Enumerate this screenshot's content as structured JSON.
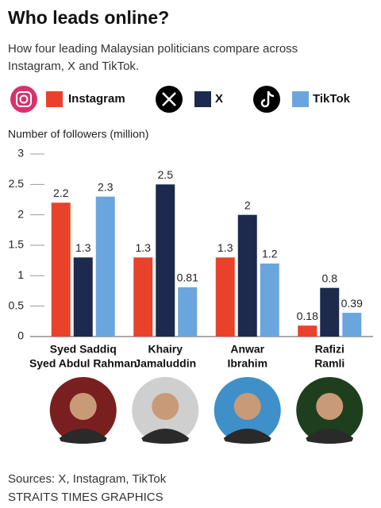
{
  "chart_data": {
    "type": "bar",
    "title": "Who leads online?",
    "subtitle": [
      "How four leading Malaysian politicians compare across",
      "Instagram, X and TikTok."
    ],
    "y_label": "Number of followers (million)",
    "categories": [
      [
        "Syed Saddiq",
        "Syed Abdul Rahman"
      ],
      [
        "Khairy",
        "Jamaluddin"
      ],
      [
        "Anwar",
        "Ibrahim"
      ],
      [
        "Rafizi",
        "Ramli"
      ]
    ],
    "series": [
      {
        "name": "Instagram",
        "color": "#e8432a",
        "values": [
          2.2,
          1.3,
          1.3,
          0.18
        ]
      },
      {
        "name": "X",
        "color": "#1d2a4e",
        "values": [
          1.3,
          2.5,
          2,
          0.8
        ]
      },
      {
        "name": "TikTok",
        "color": "#6aa6dd",
        "values": [
          2.3,
          0.81,
          1.2,
          0.39
        ]
      }
    ],
    "ylim": [
      0,
      3
    ],
    "yticks": [
      0,
      0.5,
      1,
      1.5,
      2,
      2.5,
      3
    ],
    "sources": "Sources: X, Instagram, TikTok",
    "credit": "STRAITS TIMES GRAPHICS"
  }
}
